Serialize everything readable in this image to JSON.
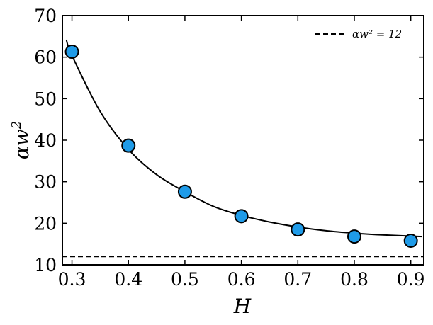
{
  "chart_data": {
    "type": "scatter",
    "xlabel": "H",
    "ylabel_base": "αw",
    "ylabel_exp": "2",
    "xlim": [
      0.283,
      0.923
    ],
    "ylim": [
      10,
      70
    ],
    "xticks": [
      0.3,
      0.4,
      0.5,
      0.6,
      0.7,
      0.8,
      0.9
    ],
    "xtick_labels": [
      "0.3",
      "0.4",
      "0.5",
      "0.6",
      "0.7",
      "0.8",
      "0.9"
    ],
    "yticks": [
      10,
      20,
      30,
      40,
      50,
      60,
      70
    ],
    "ytick_labels": [
      "10",
      "20",
      "30",
      "40",
      "50",
      "60",
      "70"
    ],
    "grid": false,
    "legend_position": "top-right",
    "series": [
      {
        "kind": "markers",
        "x": [
          0.3,
          0.4,
          0.5,
          0.6,
          0.7,
          0.8,
          0.9
        ],
        "y": [
          61.3,
          38.7,
          27.6,
          21.7,
          18.5,
          16.8,
          15.8
        ],
        "color": "#1f9be8"
      },
      {
        "kind": "fit-line",
        "x": [
          0.29,
          0.3,
          0.35,
          0.4,
          0.45,
          0.5,
          0.55,
          0.6,
          0.65,
          0.7,
          0.75,
          0.8,
          0.85,
          0.9,
          0.92
        ],
        "y": [
          64.2,
          60.4,
          46.9,
          37.8,
          31.7,
          27.6,
          24.1,
          21.9,
          20.3,
          19.1,
          18.2,
          17.6,
          17.2,
          16.9,
          16.8
        ],
        "color": "#000000"
      },
      {
        "name": "αw² = 12",
        "kind": "reference-line",
        "y": 12,
        "color": "#000000",
        "dash": "dashed"
      }
    ]
  }
}
